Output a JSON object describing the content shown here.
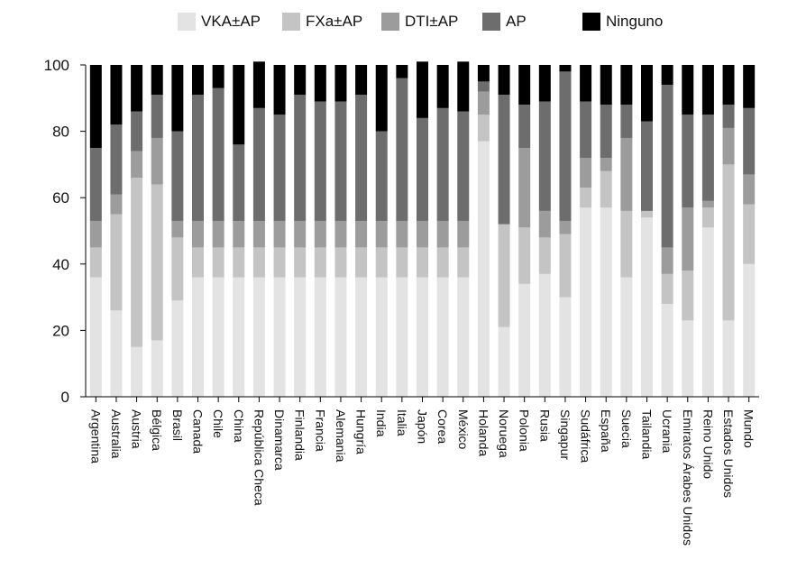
{
  "chart_data": {
    "type": "bar",
    "stacked": true,
    "title": "",
    "xlabel": "",
    "ylabel": "",
    "ylim": [
      0,
      100
    ],
    "yticks": [
      0,
      20,
      40,
      60,
      80,
      100
    ],
    "legend_position": "top",
    "categories": [
      "Argentina",
      "Australia",
      "Austria",
      "Bélgica",
      "Brasil",
      "Canada",
      "Chile",
      "China",
      "República Checa",
      "Dinamarca",
      "Finlandia",
      "Francia",
      "Alemania",
      "Hungría",
      "India",
      "Italia",
      "Japón",
      "Corea",
      "México",
      "Holanda",
      "Noruega",
      "Polonia",
      "Rusia",
      "Singapur",
      "Sudáfrica",
      "España",
      "Suecia",
      "Tailandia",
      "Ucrania",
      "Emiratos Árabes Unidos",
      "Reino Unido",
      "Estados Unidos",
      "Mundo"
    ],
    "series": [
      {
        "name": "VKA±AP",
        "color": "#e3e3e3",
        "values": [
          36,
          26,
          15,
          17,
          29,
          36,
          36,
          36,
          36,
          36,
          36,
          36,
          36,
          36,
          36,
          36,
          36,
          36,
          36,
          77,
          21,
          34,
          37,
          30,
          57,
          57,
          36,
          54,
          28,
          23,
          51,
          23,
          40
        ]
      },
      {
        "name": "FXa±AP",
        "color": "#c4c4c4",
        "values": [
          9,
          29,
          51,
          47,
          19,
          9,
          9,
          9,
          9,
          9,
          9,
          9,
          9,
          9,
          9,
          9,
          9,
          9,
          9,
          8,
          31,
          17,
          11,
          19,
          6,
          11,
          20,
          2,
          9,
          15,
          6,
          47,
          18
        ]
      },
      {
        "name": "DTI±AP",
        "color": "#9c9c9c",
        "values": [
          8,
          6,
          8,
          14,
          5,
          8,
          8,
          8,
          8,
          8,
          8,
          8,
          8,
          8,
          8,
          8,
          8,
          8,
          8,
          7,
          0,
          24,
          8,
          4,
          9,
          4,
          22,
          0,
          8,
          19,
          2,
          11,
          9
        ]
      },
      {
        "name": "AP",
        "color": "#6d6d6d",
        "values": [
          22,
          21,
          12,
          13,
          27,
          38,
          40,
          23,
          34,
          32,
          38,
          36,
          36,
          38,
          27,
          43,
          31,
          34,
          33,
          3,
          39,
          13,
          33,
          45,
          17,
          16,
          10,
          27,
          49,
          28,
          26,
          7,
          20
        ]
      },
      {
        "name": "Ninguno",
        "color": "#000000",
        "values": [
          25,
          18,
          14,
          9,
          20,
          9,
          7,
          24,
          14,
          15,
          9,
          11,
          11,
          9,
          20,
          4,
          17,
          13,
          15,
          5,
          9,
          12,
          11,
          2,
          11,
          12,
          12,
          17,
          6,
          15,
          15,
          12,
          13
        ]
      }
    ]
  }
}
